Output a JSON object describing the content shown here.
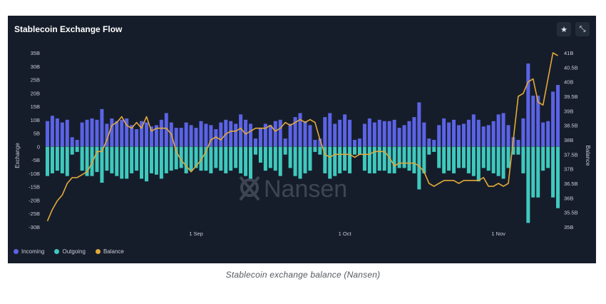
{
  "panel": {
    "title": "Stablecoin Exchange Flow"
  },
  "buttons": {
    "star_icon": "star-icon",
    "collapse_icon": "collapse-arrows-icon"
  },
  "watermark": {
    "text": "Nansen"
  },
  "caption": "Stablecoin exchange balance (Nansen)",
  "colors": {
    "incoming": "#5b63e6",
    "outgoing": "#3fc9be",
    "balance": "#e2a93a",
    "background": "#161d2a"
  },
  "chart_data": {
    "type": "bar",
    "title": "Stablecoin Exchange Flow",
    "xlabel": "",
    "ylabel": "Exchange",
    "y2label": "Balance",
    "ylim": [
      -30,
      35
    ],
    "y2lim": [
      35,
      41
    ],
    "yticks": [
      "35B",
      "30B",
      "25B",
      "20B",
      "15B",
      "10B",
      "5B",
      "0",
      "-5B",
      "-10B",
      "-15B",
      "-20B",
      "-25B",
      "-30B"
    ],
    "y2ticks": [
      "41B",
      "40.5B",
      "40B",
      "39.5B",
      "39B",
      "38.5B",
      "38B",
      "37.5B",
      "37B",
      "36.5B",
      "36B",
      "35.5B",
      "35B"
    ],
    "xticks": [
      {
        "label": "1 Sep",
        "day": 30
      },
      {
        "label": "1 Oct",
        "day": 60
      },
      {
        "label": "1 Nov",
        "day": 91
      }
    ],
    "grid": false,
    "legend_position": "bottom-left",
    "series": [
      {
        "name": "Incoming",
        "values": [
          9.5,
          11.5,
          10.5,
          9,
          10,
          3.5,
          2.5,
          9,
          10,
          10.5,
          10,
          14,
          8.5,
          10.5,
          9.5,
          10,
          10.5,
          8,
          6.5,
          9.5,
          9,
          7.5,
          8,
          10,
          12.5,
          9,
          7,
          7,
          9,
          8,
          7,
          9.5,
          8.5,
          8,
          6.5,
          9,
          10,
          9.5,
          8.5,
          12,
          10,
          8.5,
          3,
          7,
          8.5,
          8,
          9.5,
          10,
          3,
          8.5,
          11,
          12.5,
          9.5,
          8,
          2.5,
          3,
          11,
          12.5,
          8.5,
          10,
          12,
          10,
          2.5,
          3,
          8.5,
          10.5,
          9,
          10,
          9.5,
          9.5,
          10,
          7,
          8,
          9.5,
          11,
          16.5,
          9,
          3,
          2.5,
          8,
          10.5,
          9,
          10,
          8,
          8.5,
          10,
          12,
          10,
          7.5,
          8,
          9.5,
          12,
          12.5,
          8,
          3.5,
          2.5,
          10.5,
          31,
          19,
          19,
          9,
          9.5,
          20.5,
          23
        ]
      },
      {
        "name": "Outgoing",
        "values": [
          -11,
          -10,
          -9,
          -10,
          -11,
          -3,
          -2,
          -9,
          -11,
          -11,
          -9.5,
          -13.5,
          -9,
          -10,
          -11,
          -12,
          -12,
          -10,
          -9,
          -12,
          -13,
          -10,
          -10.5,
          -12,
          -10,
          -9,
          -8.5,
          -8,
          -10,
          -9,
          -8,
          -9,
          -9,
          -10,
          -8,
          -9,
          -10,
          -9,
          -8,
          -10,
          -11,
          -12,
          -3,
          -6,
          -9,
          -8,
          -9,
          -11,
          -3,
          -8,
          -11,
          -12,
          -10,
          -9,
          -2,
          -3,
          -10,
          -12,
          -11,
          -10,
          -9,
          -10,
          -3,
          -3,
          -9,
          -10,
          -10,
          -9,
          -9,
          -10,
          -10,
          -8,
          -8,
          -9,
          -10,
          -16,
          -10,
          -3,
          -2,
          -8,
          -10,
          -9,
          -10,
          -8,
          -8,
          -10,
          -11,
          -13,
          -8,
          -9,
          -10,
          -11,
          -12,
          -8,
          -3,
          -3,
          -10,
          -28.5,
          -19,
          -19,
          -9,
          -8,
          -19,
          -23
        ]
      },
      {
        "name": "Balance",
        "values": [
          35.2,
          35.6,
          35.9,
          36.1,
          36.5,
          36.7,
          36.7,
          36.8,
          36.9,
          37.2,
          37.6,
          37.6,
          38.0,
          38.5,
          38.6,
          38.8,
          38.5,
          38.4,
          38.6,
          38.4,
          38.8,
          38.3,
          38.4,
          38.4,
          38.4,
          38.2,
          37.6,
          37.3,
          37.1,
          36.9,
          37.1,
          37.3,
          37.6,
          38.0,
          38.1,
          38.0,
          38.2,
          38.3,
          38.3,
          38.4,
          38.2,
          38.3,
          38.4,
          38.4,
          38.4,
          38.5,
          38.3,
          38.4,
          38.6,
          38.5,
          38.6,
          38.7,
          38.6,
          38.7,
          38.6,
          38.0,
          37.5,
          37.4,
          37.5,
          37.5,
          37.5,
          37.5,
          37.4,
          37.5,
          37.5,
          37.5,
          37.6,
          37.6,
          37.6,
          37.4,
          37.1,
          37.2,
          37.2,
          37.2,
          37.2,
          37.1,
          36.9,
          36.5,
          36.4,
          36.5,
          36.6,
          36.6,
          36.6,
          36.5,
          36.6,
          36.6,
          36.6,
          36.6,
          36.7,
          36.4,
          36.4,
          36.5,
          36.4,
          36.5,
          38.0,
          39.5,
          39.6,
          40.0,
          40.1,
          39.3,
          39.2,
          40.1,
          41.0,
          40.9
        ]
      }
    ]
  }
}
